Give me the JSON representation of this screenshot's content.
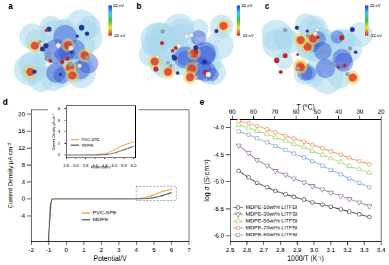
{
  "panels": [
    {
      "label": "a",
      "type": "electrostatic_potential_map",
      "colorbar": {
        "range": [
          -22,
          22
        ],
        "ticks": [
          {
            "value": 22,
            "label": "22 eV"
          },
          {
            "value": -22,
            "label": "-22 eV"
          }
        ]
      }
    },
    {
      "label": "b",
      "type": "electrostatic_potential_map",
      "colorbar": {
        "range": [
          -22,
          22
        ],
        "ticks": [
          {
            "value": 22,
            "label": "22 eV"
          },
          {
            "value": -22,
            "label": "-22 eV"
          }
        ]
      }
    },
    {
      "label": "c",
      "type": "electrostatic_potential_map",
      "colorbar": {
        "range": [
          -22,
          22
        ],
        "ticks": [
          {
            "value": 22,
            "label": "22 eV"
          },
          {
            "value": -22,
            "label": "-22 eV"
          }
        ]
      }
    }
  ],
  "chart_data": [
    {
      "panel": "d",
      "type": "line",
      "xlabel": "Potential/V",
      "ylabel": "Current Density μA cm⁻²",
      "x": [
        -1.02,
        -0.95,
        -0.9,
        -0.85,
        -0.8,
        -0.5,
        0,
        1,
        2,
        3,
        4,
        4.5,
        5,
        5.5,
        6
      ],
      "series": [
        {
          "name": "PVC-SPE",
          "color": "#f0a030",
          "line_style": "solid",
          "values": [
            -10,
            -5,
            -1.5,
            -0.4,
            0,
            0,
            0,
            0,
            0,
            0,
            0.05,
            0.3,
            1.0,
            1.8,
            2.3
          ]
        },
        {
          "name": "MDPE",
          "color": "#3d5a5a",
          "line_style": "solid",
          "values": [
            -10,
            -5.5,
            -1.8,
            -0.5,
            0,
            0,
            0,
            0,
            0,
            0,
            0,
            0.05,
            0.3,
            0.8,
            1.5
          ]
        }
      ],
      "xlim": [
        -2,
        7
      ],
      "xticks": [
        -2,
        -1,
        0,
        1,
        2,
        3,
        4,
        5,
        6,
        7
      ],
      "ylim": [
        -10,
        21
      ],
      "yticks": [
        -4,
        0,
        4,
        8,
        12,
        16,
        20
      ],
      "legend": "lower center",
      "zoom_box": {
        "x": [
          4,
          6.3
        ],
        "y": [
          -0.4,
          2.9
        ]
      },
      "inset": {
        "type": "line",
        "xlabel": "Potential/V",
        "ylabel": "Current Density μA cm⁻²",
        "x": [
          2.5,
          3,
          3.5,
          4,
          4.5,
          4.75,
          5,
          5.25,
          5.5,
          5.75,
          6
        ],
        "series": [
          {
            "name": "PVC-SPE",
            "color": "#f0a030",
            "values": [
              0,
              0,
              0,
              0.05,
              0.2,
              0.5,
              0.9,
              1.3,
              1.7,
              2.0,
              2.3
            ]
          },
          {
            "name": "MDPE",
            "color": "#3d5a5a",
            "values": [
              0,
              0,
              0,
              0,
              0.05,
              0.15,
              0.35,
              0.6,
              0.9,
              1.2,
              1.5
            ]
          }
        ],
        "xlim": [
          2.5,
          6.1
        ],
        "xticks": [
          2.5,
          {
            "value": 3,
            "label": "3.0"
          },
          3.5,
          {
            "value": 4,
            "label": "4.0"
          },
          4.5,
          {
            "value": 5,
            "label": "5.0"
          },
          5.5,
          {
            "value": 6,
            "label": "6.0"
          }
        ],
        "ylim": [
          -0.5,
          8.5
        ],
        "yticks": [
          0,
          2,
          4,
          6,
          8
        ],
        "legend": "lower left"
      }
    },
    {
      "panel": "e",
      "type": "line",
      "xlabel": "1000/T (K⁻¹)",
      "ylabel": "log σ (S·cm⁻¹)",
      "x2label": "T (°C)",
      "x": [
        2.55,
        2.61,
        2.66,
        2.72,
        2.77,
        2.83,
        2.88,
        2.94,
        2.99,
        3.05,
        3.1,
        3.16,
        3.21,
        3.27,
        3.33
      ],
      "series": [
        {
          "name": "MDPE-10wt% LiTFSI",
          "color": "#404040",
          "marker": "circle",
          "line_style": "solid",
          "values": [
            -4.8,
            -4.92,
            -5.02,
            -5.1,
            -5.17,
            -5.23,
            -5.28,
            -5.33,
            -5.38,
            -5.42,
            -5.46,
            -5.51,
            -5.55,
            -5.6,
            -5.65
          ]
        },
        {
          "name": "MDPE-30wt% LiTFSI",
          "color": "#8e7196",
          "marker": "triangle-down",
          "line_style": "solid",
          "values": [
            -4.33,
            -4.47,
            -4.6,
            -4.7,
            -4.8,
            -4.87,
            -4.94,
            -5.01,
            -5.08,
            -5.14,
            -5.2,
            -5.26,
            -5.32,
            -5.38,
            -5.45
          ]
        },
        {
          "name": "MDPE-50wt% LiTFSI",
          "color": "#a6d26a",
          "marker": "triangle",
          "line_style": "solid",
          "values": [
            -3.95,
            -4.0,
            -4.06,
            -4.12,
            -4.18,
            -4.24,
            -4.3,
            -4.36,
            -4.43,
            -4.5,
            -4.57,
            -4.64,
            -4.71,
            -4.77,
            -4.83
          ]
        },
        {
          "name": "MDPE-70wt% LiTFSI",
          "color": "#f28c4f",
          "marker": "circle",
          "line_style": "solid",
          "values": [
            -3.88,
            -3.92,
            -3.97,
            -4.03,
            -4.09,
            -4.15,
            -4.2,
            -4.26,
            -4.32,
            -4.38,
            -4.44,
            -4.5,
            -4.56,
            -4.62,
            -4.68
          ]
        },
        {
          "name": "MDPE-90wt% LiTFSI",
          "color": "#7fa9d9",
          "marker": "square",
          "line_style": "solid",
          "values": [
            -4.07,
            -4.13,
            -4.2,
            -4.27,
            -4.34,
            -4.41,
            -4.48,
            -4.55,
            -4.62,
            -4.7,
            -4.78,
            -4.86,
            -4.94,
            -5.02,
            -5.1
          ]
        }
      ],
      "xlim": [
        2.5,
        3.4
      ],
      "xticks": [
        2.5,
        2.6,
        2.7,
        2.8,
        2.9,
        {
          "value": 3,
          "label": "3.0"
        },
        3.1,
        3.2,
        3.3,
        3.4
      ],
      "x2lim": [
        91,
        20
      ],
      "x2ticks": [
        90,
        80,
        70,
        60,
        50,
        40,
        30,
        20
      ],
      "ylim": [
        -6.1,
        -3.85
      ],
      "yticks": [
        {
          "value": -6,
          "label": "-6.0"
        },
        -5.5,
        {
          "value": -5,
          "label": "-5.0"
        },
        -4.5,
        {
          "value": -4,
          "label": "-4.0"
        }
      ],
      "legend": "lower left"
    }
  ]
}
